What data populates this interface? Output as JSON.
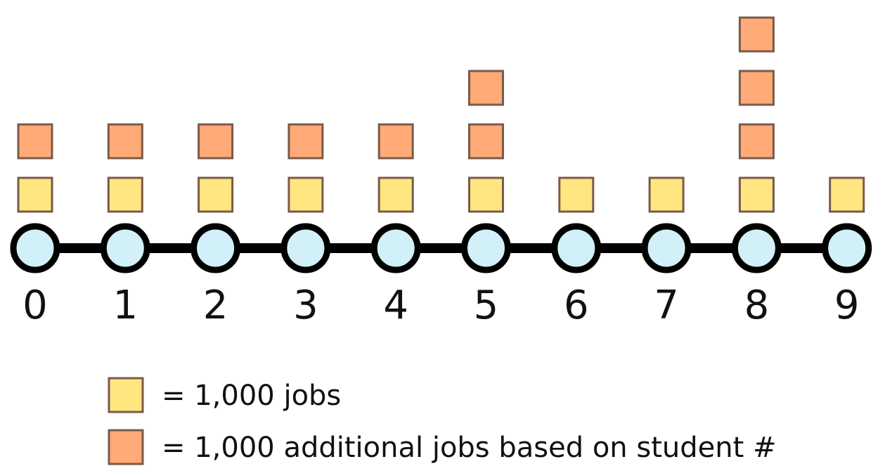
{
  "colors": {
    "base_block_fill": "#ffe680",
    "extra_block_fill": "#ffaa77",
    "block_stroke": "#7a5a4a",
    "station_fill": "#d1f0f8",
    "station_stroke": "#000000",
    "line_color": "#000000",
    "text_color": "#111111"
  },
  "stations": [
    {
      "label": "0",
      "base_jobs_blocks": 1,
      "additional_jobs_blocks": 1
    },
    {
      "label": "1",
      "base_jobs_blocks": 1,
      "additional_jobs_blocks": 1
    },
    {
      "label": "2",
      "base_jobs_blocks": 1,
      "additional_jobs_blocks": 1
    },
    {
      "label": "3",
      "base_jobs_blocks": 1,
      "additional_jobs_blocks": 1
    },
    {
      "label": "4",
      "base_jobs_blocks": 1,
      "additional_jobs_blocks": 1
    },
    {
      "label": "5",
      "base_jobs_blocks": 1,
      "additional_jobs_blocks": 2
    },
    {
      "label": "6",
      "base_jobs_blocks": 1,
      "additional_jobs_blocks": 0
    },
    {
      "label": "7",
      "base_jobs_blocks": 1,
      "additional_jobs_blocks": 0
    },
    {
      "label": "8",
      "base_jobs_blocks": 1,
      "additional_jobs_blocks": 3
    },
    {
      "label": "9",
      "base_jobs_blocks": 1,
      "additional_jobs_blocks": 0
    }
  ],
  "legend": {
    "base": "= 1,000 jobs",
    "additional": "= 1,000 additional jobs based on student #"
  }
}
